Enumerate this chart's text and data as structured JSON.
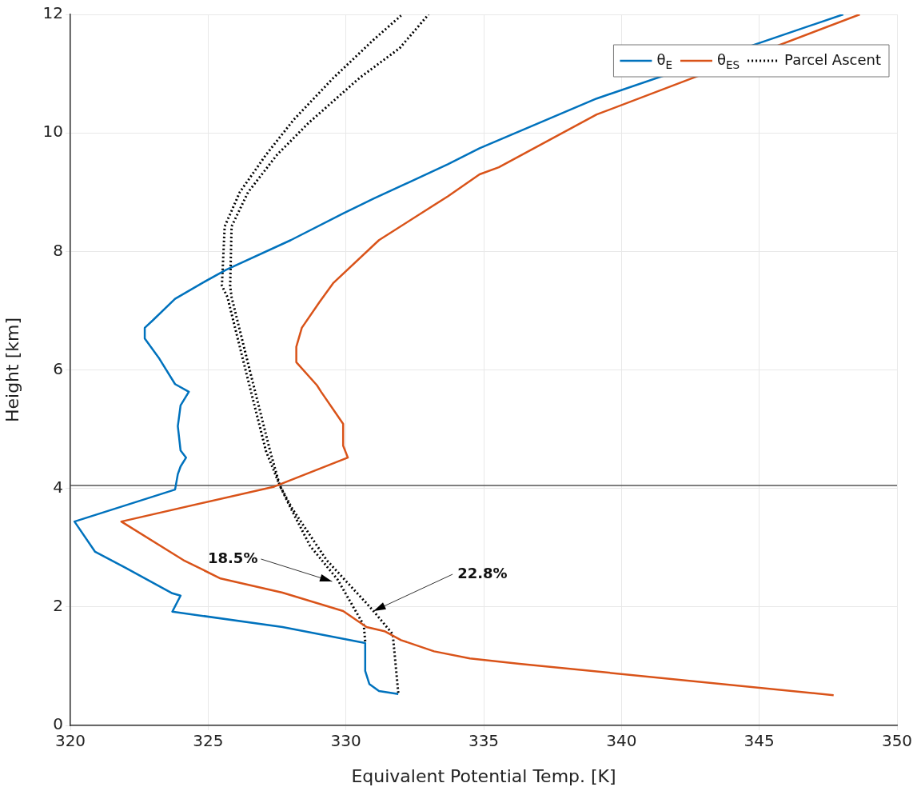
{
  "chart_data": {
    "type": "line",
    "xlabel": "Equivalent Potential Temp. [K]",
    "ylabel": "Height [km]",
    "xlim": [
      320,
      350
    ],
    "xticks": [
      320,
      325,
      330,
      335,
      340,
      345,
      350
    ],
    "ylim": [
      0,
      12
    ],
    "yticks": [
      0,
      2,
      4,
      6,
      8,
      10,
      12
    ],
    "grid": true,
    "legend": "top right",
    "marker": "none",
    "line_style": "solid",
    "series": [
      {
        "name": "θ$_{E}$",
        "color": "#0072bd",
        "x": [
          331.9,
          331.2,
          330.85,
          330.7,
          330.7,
          327.7,
          323.7,
          324.0,
          323.7,
          322.0,
          320.9,
          320.15,
          323.8,
          323.9,
          324.0,
          324.2,
          324.0,
          323.9,
          324.0,
          324.3,
          323.8,
          323.2,
          322.7,
          322.7,
          323.0,
          323.8,
          324.8,
          325.65,
          328.0,
          329.9,
          331.0,
          333.7,
          334.85,
          335.55,
          339.1,
          348.05
        ],
        "values": [
          0.53,
          0.58,
          0.7,
          0.92,
          1.39,
          1.66,
          1.92,
          2.19,
          2.23,
          2.66,
          2.93,
          3.44,
          3.98,
          4.24,
          4.37,
          4.52,
          4.64,
          5.05,
          5.4,
          5.63,
          5.76,
          6.21,
          6.53,
          6.71,
          6.84,
          7.2,
          7.47,
          7.69,
          8.19,
          8.64,
          8.89,
          9.47,
          9.74,
          9.88,
          10.58,
          12.0
        ]
      },
      {
        "name": "θ$_{ES}$",
        "color": "#d95319",
        "x": [
          347.7,
          336.3,
          334.5,
          333.2,
          332.0,
          331.4,
          330.75,
          329.9,
          327.7,
          325.45,
          324.1,
          321.85,
          327.4,
          330.07,
          329.9,
          329.9,
          329.1,
          328.95,
          328.2,
          328.2,
          328.4,
          329.05,
          329.55,
          331.2,
          333.7,
          334.85,
          335.55,
          339.1,
          348.65
        ],
        "values": [
          0.51,
          1.04,
          1.13,
          1.25,
          1.44,
          1.59,
          1.66,
          1.93,
          2.24,
          2.48,
          2.79,
          3.44,
          4.03,
          4.52,
          4.72,
          5.09,
          5.63,
          5.74,
          6.13,
          6.39,
          6.71,
          7.15,
          7.47,
          8.19,
          8.93,
          9.3,
          9.42,
          10.31,
          12.0
        ]
      },
      {
        "name": "Parcel Ascent",
        "color": "#000000",
        "line_style": "dotted",
        "x": [
          330.7,
          330.65,
          329.7,
          328.7,
          327.95,
          327.6,
          327.1,
          326.4,
          325.7,
          325.5,
          325.6,
          326.15,
          327.1,
          328.1,
          329.55,
          331.0,
          332.0
        ],
        "values": [
          1.42,
          1.69,
          2.46,
          3.03,
          3.71,
          4.05,
          4.63,
          5.92,
          7.23,
          7.42,
          8.42,
          9.0,
          9.63,
          10.22,
          10.93,
          11.57,
          11.98
        ]
      },
      {
        "color": "#000000",
        "line_style": "dotted",
        "x": [
          331.9,
          331.7,
          331.0,
          330.75,
          329.3,
          328.05,
          327.6,
          327.25,
          326.55,
          325.85,
          325.8,
          325.85,
          326.45,
          327.5,
          328.65,
          330.5,
          331.95,
          333.0
        ],
        "values": [
          0.55,
          1.54,
          1.93,
          2.06,
          2.79,
          3.66,
          4.05,
          4.63,
          5.92,
          7.23,
          7.42,
          8.42,
          9.0,
          9.63,
          10.17,
          10.93,
          11.43,
          12.0
        ]
      }
    ],
    "ref_lines": [
      {
        "axis": "y",
        "value": 4.05,
        "color": "#555555"
      }
    ],
    "annotations": [
      {
        "text": "18.5%",
        "x": 329.5,
        "y": 2.43
      },
      {
        "text": "22.8%",
        "x": 331.0,
        "y": 1.93
      }
    ]
  }
}
